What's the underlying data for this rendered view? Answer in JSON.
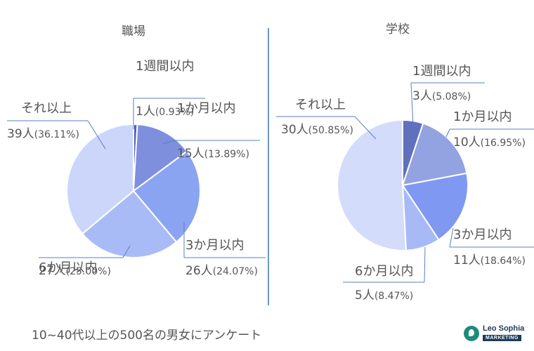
{
  "chart_data": [
    {
      "type": "pie",
      "title": "職場",
      "slices": [
        {
          "label": "1週間以内",
          "count": "1人",
          "pct": "(0.93%)",
          "value": 0.93,
          "color": "#4f63b3"
        },
        {
          "label": "1か月以内",
          "count": "15人",
          "pct": "(13.89%)",
          "value": 13.89,
          "color": "#7d8fdd"
        },
        {
          "label": "3か月以内",
          "count": "26人",
          "pct": "(24.07%)",
          "value": 24.07,
          "color": "#8ba4f2"
        },
        {
          "label": "6か月以内",
          "count": "27人",
          "pct": "(25.00%)",
          "value": 25.0,
          "color": "#a9bbf6"
        },
        {
          "label": "それ以上",
          "count": "39人",
          "pct": "(36.11%)",
          "value": 36.11,
          "color": "#ccd6fa"
        }
      ]
    },
    {
      "type": "pie",
      "title": "学校",
      "slices": [
        {
          "label": "1週間以内",
          "count": "3人",
          "pct": "(5.08%)",
          "value": 5.08,
          "color": "#5f70bd"
        },
        {
          "label": "1か月以内",
          "count": "10人",
          "pct": "(16.95%)",
          "value": 16.95,
          "color": "#93a2e0"
        },
        {
          "label": "3か月以内",
          "count": "11人",
          "pct": "(18.64%)",
          "value": 18.64,
          "color": "#7f99f3"
        },
        {
          "label": "6か月以内",
          "count": "5人",
          "pct": "(8.47%)",
          "value": 8.47,
          "color": "#a7baf5"
        },
        {
          "label": "それ以上",
          "count": "30人",
          "pct": "(50.85%)",
          "value": 50.85,
          "color": "#d3dcfb"
        }
      ]
    }
  ],
  "footer": "10~40代以上の500名の男女にアンケート",
  "logo": {
    "brand": "Leo Sophia",
    "tag": "MARKETING"
  }
}
